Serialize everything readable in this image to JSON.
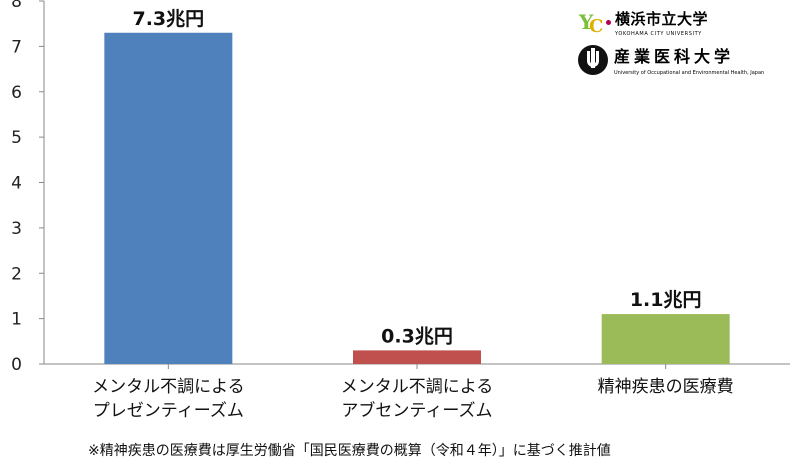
{
  "chart_data": {
    "type": "bar",
    "categories": [
      [
        "メンタル不調による",
        "プレゼンティーズム"
      ],
      [
        "メンタル不調による",
        "アブセンティーズム"
      ],
      [
        "精神疾患の医療費"
      ]
    ],
    "values": [
      7.3,
      0.3,
      1.1
    ],
    "data_labels": [
      "7.3兆円",
      "0.3兆円",
      "1.1兆円"
    ],
    "colors": [
      "#4f81bd",
      "#c0504d",
      "#9bbb59"
    ],
    "ylim": [
      0,
      8
    ],
    "yticks": [
      0,
      1,
      2,
      3,
      4,
      5,
      6,
      7,
      8
    ],
    "title": "",
    "xlabel": "",
    "ylabel": "",
    "grid": false
  },
  "logos": {
    "ycu_name": "横浜市立大学",
    "ycu_english": "YOKOHAMA CITY UNIVERSITY",
    "uoeh_name": "産業医科大学",
    "uoeh_english": "University of Occupational and Environmental Health, Japan"
  },
  "footnote": "※精神疾患の医療費は厚生労働省「国民医療費の概算（令和４年）」に基づく推計値"
}
